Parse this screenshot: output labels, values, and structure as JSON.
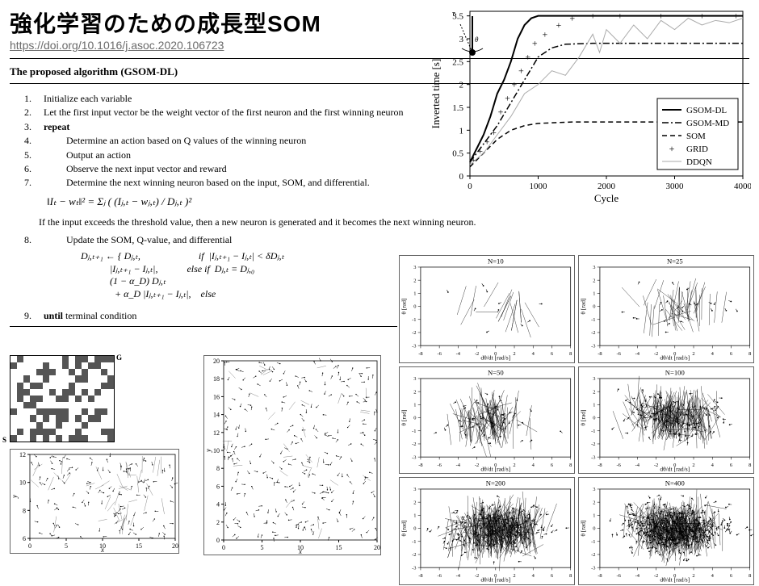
{
  "title": "強化学習のための成長型SOM",
  "doi_url": "https://doi.org/10.1016/j.asoc.2020.106723",
  "section_header": "The proposed algorithm (GSOM-DL)",
  "algorithm": {
    "steps": [
      {
        "n": "1.",
        "text": "Initialize each variable",
        "indent": 0
      },
      {
        "n": "2.",
        "text": "Let the first input vector be the weight vector of the first neuron and the first winning neuron",
        "indent": 0
      },
      {
        "n": "3.",
        "text": "repeat",
        "bold": true,
        "indent": 0
      },
      {
        "n": "4.",
        "text": "Determine an action based on Q values of the winning neuron",
        "indent": 1
      },
      {
        "n": "5.",
        "text": "Output an action",
        "indent": 1
      },
      {
        "n": "6.",
        "text": "Observe the next input vector and reward",
        "indent": 1
      },
      {
        "n": "7.",
        "text": "Determine the next winning neuron based on the input, SOM, and differential.",
        "indent": 1
      }
    ],
    "formula1": "‖Iₜ − wₜ‖² = Σⱼ ( (Iⱼ,ₜ − wⱼ,ₜ) / Dⱼ,ₜ )²",
    "note": "If the input exceeds the threshold value, then a new neuron is generated and it becomes the next winning neuron.",
    "step8": {
      "n": "8.",
      "text": "Update the SOM, Q-value, and differential",
      "indent": 1
    },
    "formula2_lines": [
      "Dⱼ,ₜ₊₁ ← { Dⱼ,ₜ,                        if  |Iⱼ,ₜ₊₁ − Iⱼ,ₜ| < δDⱼ,ₜ",
      "            |Iⱼ,ₜ₊₁ − Iⱼ,ₜ|,            else if  Dⱼ,ₜ = Dⱼ,₀",
      "            (1 − α_D) Dⱼ,ₜ",
      "              + α_D |Iⱼ,ₜ₊₁ − Iⱼ,ₜ|,    else"
    ],
    "step9": {
      "n": "9.",
      "text_prefix": "until",
      "text": " terminal condition",
      "indent": 0
    }
  },
  "main_chart": {
    "type": "line",
    "xlabel": "Cycle",
    "ylabel": "Inverted time [s]",
    "xlim": [
      0,
      4000
    ],
    "ylim": [
      0,
      3.6
    ],
    "xticks": [
      0,
      1000,
      2000,
      3000,
      4000
    ],
    "yticks": [
      0,
      0.5,
      1,
      1.5,
      2,
      2.5,
      3,
      3.5
    ],
    "series": [
      {
        "name": "GSOM-DL",
        "style": "solid",
        "color": "#000000",
        "lw": 2,
        "points": [
          [
            0,
            0.3
          ],
          [
            100,
            0.6
          ],
          [
            200,
            0.9
          ],
          [
            300,
            1.3
          ],
          [
            400,
            1.8
          ],
          [
            500,
            2.1
          ],
          [
            600,
            2.5
          ],
          [
            700,
            3.0
          ],
          [
            800,
            3.3
          ],
          [
            900,
            3.45
          ],
          [
            1000,
            3.5
          ],
          [
            1500,
            3.5
          ],
          [
            2000,
            3.5
          ],
          [
            3000,
            3.5
          ],
          [
            4000,
            3.5
          ]
        ]
      },
      {
        "name": "GSOM-MD",
        "style": "dashdot",
        "color": "#000000",
        "lw": 1.5,
        "points": [
          [
            0,
            0.3
          ],
          [
            200,
            0.7
          ],
          [
            400,
            1.1
          ],
          [
            600,
            1.6
          ],
          [
            800,
            2.1
          ],
          [
            1000,
            2.6
          ],
          [
            1200,
            2.8
          ],
          [
            1400,
            2.88
          ],
          [
            1800,
            2.9
          ],
          [
            2500,
            2.9
          ],
          [
            4000,
            2.9
          ]
        ]
      },
      {
        "name": "SOM",
        "style": "dashed",
        "color": "#000000",
        "lw": 1.5,
        "points": [
          [
            0,
            0.2
          ],
          [
            200,
            0.5
          ],
          [
            400,
            0.8
          ],
          [
            600,
            1.0
          ],
          [
            800,
            1.1
          ],
          [
            1000,
            1.15
          ],
          [
            1500,
            1.18
          ],
          [
            2000,
            1.18
          ],
          [
            3000,
            1.18
          ],
          [
            4000,
            1.18
          ]
        ]
      },
      {
        "name": "GRID",
        "style": "markers",
        "marker": "+",
        "color": "#000000",
        "points": [
          [
            50,
            0.35
          ],
          [
            150,
            0.55
          ],
          [
            250,
            0.75
          ],
          [
            350,
            0.95
          ],
          [
            450,
            1.4
          ],
          [
            550,
            1.7
          ],
          [
            650,
            2.0
          ],
          [
            750,
            2.3
          ],
          [
            850,
            2.6
          ],
          [
            950,
            2.9
          ],
          [
            1100,
            3.1
          ],
          [
            1300,
            3.3
          ],
          [
            1500,
            3.45
          ],
          [
            1800,
            3.5
          ],
          [
            2200,
            3.5
          ],
          [
            2800,
            3.5
          ],
          [
            3400,
            3.5
          ],
          [
            3900,
            3.5
          ]
        ]
      },
      {
        "name": "DDQN",
        "style": "solid",
        "color": "#aaaaaa",
        "lw": 1,
        "points": [
          [
            0,
            0.25
          ],
          [
            200,
            0.5
          ],
          [
            400,
            0.9
          ],
          [
            600,
            1.3
          ],
          [
            800,
            1.8
          ],
          [
            1000,
            2.0
          ],
          [
            1200,
            2.3
          ],
          [
            1400,
            2.2
          ],
          [
            1600,
            2.6
          ],
          [
            1800,
            3.1
          ],
          [
            1900,
            2.7
          ],
          [
            2000,
            3.2
          ],
          [
            2200,
            2.9
          ],
          [
            2400,
            3.3
          ],
          [
            2600,
            3.0
          ],
          [
            2800,
            3.4
          ],
          [
            3000,
            3.2
          ],
          [
            3200,
            3.45
          ],
          [
            3400,
            3.3
          ],
          [
            3600,
            3.4
          ],
          [
            3800,
            3.35
          ],
          [
            4000,
            3.45
          ]
        ]
      }
    ],
    "legend_pos": "bottom-right",
    "label_fontsize": 13,
    "tick_fontsize": 11,
    "background_color": "#ffffff",
    "grid_color": "none"
  },
  "voronoi_panels": [
    {
      "title": "N=10",
      "xlabel": "dθ/dt [rad/s]",
      "ylabel": "θ [rad]",
      "xlim": [
        -8,
        8
      ],
      "ylim": [
        -3,
        3
      ],
      "n_cells": 10
    },
    {
      "title": "N=25",
      "xlabel": "dθ/dt [rad/s]",
      "ylabel": "θ [rad]",
      "xlim": [
        -8,
        8
      ],
      "ylim": [
        -3,
        3
      ],
      "n_cells": 25
    },
    {
      "title": "N=50",
      "xlabel": "dθ/dt [rad/s]",
      "ylabel": "θ [rad]",
      "xlim": [
        -8,
        8
      ],
      "ylim": [
        -3,
        3
      ],
      "n_cells": 50
    },
    {
      "title": "N=100",
      "xlabel": "dθ/dt [rad/s]",
      "ylabel": "θ [rad]",
      "xlim": [
        -8,
        8
      ],
      "ylim": [
        -3,
        3
      ],
      "n_cells": 100
    },
    {
      "title": "N=200",
      "xlabel": "dθ/dt [rad/s]",
      "ylabel": "θ [rad]",
      "xlim": [
        -8,
        8
      ],
      "ylim": [
        -3,
        3
      ],
      "n_cells": 200
    },
    {
      "title": "N=400",
      "xlabel": "dθ/dt [rad/s]",
      "ylabel": "θ [rad]",
      "xlim": [
        -8,
        8
      ],
      "ylim": [
        -3,
        3
      ],
      "n_cells": 400
    }
  ],
  "voronoi_common": {
    "xticks": [
      -8,
      -6,
      -4,
      -2,
      0,
      2,
      4,
      6,
      8
    ],
    "yticks": [
      -3,
      -2,
      -1,
      0,
      1,
      2,
      3
    ],
    "xlabel": "dθ/dt [rad/s]",
    "ylabel": "θ [rad]",
    "line_color": "#000000",
    "point_color": "#000000"
  },
  "maze": {
    "bw_start_label": "S",
    "bw_goal_label": "G",
    "pattern_seed": 7,
    "plot_left": {
      "xlabel": "x",
      "ylabel": "y",
      "xlim": [
        0,
        20
      ],
      "ylim": [
        6,
        12
      ],
      "xticks": [
        0,
        5,
        10,
        15,
        20
      ],
      "yticks": [
        6,
        8,
        10,
        12
      ]
    },
    "plot_right": {
      "xlabel": "x",
      "ylabel": "y",
      "xlim": [
        0,
        20
      ],
      "ylim": [
        0,
        20
      ],
      "xticks": [
        0,
        5,
        10,
        15,
        20
      ],
      "yticks": [
        0,
        2,
        4,
        6,
        8,
        10,
        12,
        14,
        16,
        18,
        20
      ]
    },
    "line_color": "#555555"
  },
  "colors": {
    "text": "#000000",
    "link": "#6a6a6a",
    "maze_dark": "#555555",
    "ddqn_gray": "#aaaaaa"
  }
}
